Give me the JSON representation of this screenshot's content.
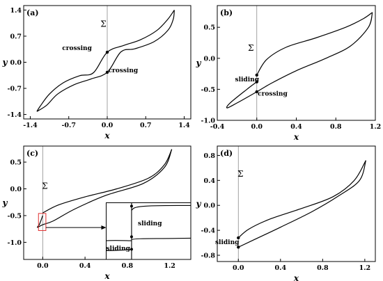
{
  "chart_data": [
    {
      "type": "line",
      "panel": "(a)",
      "xlabel": "x",
      "ylabel": "y",
      "xlim": [
        -1.52,
        1.52
      ],
      "ylim": [
        -1.52,
        1.52
      ],
      "xticks": [
        -1.4,
        -0.7,
        0.0,
        0.7,
        1.4
      ],
      "yticks": [
        -1.4,
        -0.7,
        0.0,
        0.7,
        1.4
      ],
      "xtick_labels": [
        "-1.4",
        "-0.7",
        "0.0",
        "0.7",
        "1.4"
      ],
      "ytick_labels": [
        "-1.4",
        "-0.7",
        "0.0",
        "0.7",
        "1.4"
      ],
      "sigma_label": "Σ",
      "sigma_pos": [
        -0.07,
        0.95
      ],
      "curves": [
        [
          [
            -1.28,
            -1.32
          ],
          [
            -1.22,
            -1.18
          ],
          [
            -1.05,
            -0.85
          ],
          [
            -0.8,
            -0.55
          ],
          [
            -0.5,
            -0.36
          ],
          [
            -0.25,
            -0.28
          ],
          [
            0.0,
            0.27
          ],
          [
            0.3,
            0.45
          ],
          [
            0.6,
            0.6
          ],
          [
            0.9,
            0.85
          ],
          [
            1.1,
            1.15
          ],
          [
            1.22,
            1.4
          ]
        ],
        [
          [
            1.22,
            1.4
          ],
          [
            1.2,
            1.15
          ],
          [
            1.1,
            0.85
          ],
          [
            0.85,
            0.55
          ],
          [
            0.5,
            0.36
          ],
          [
            0.25,
            0.28
          ],
          [
            0.0,
            -0.27
          ],
          [
            -0.3,
            -0.45
          ],
          [
            -0.6,
            -0.6
          ],
          [
            -0.9,
            -0.85
          ],
          [
            -1.1,
            -1.15
          ],
          [
            -1.28,
            -1.32
          ]
        ]
      ],
      "points": [
        [
          0.0,
          0.27
        ],
        [
          0.0,
          -0.27
        ]
      ],
      "annotations": [
        {
          "text": "crossing",
          "x": -0.82,
          "y": 0.33
        },
        {
          "text": "crossing",
          "x": 0.02,
          "y": -0.27
        }
      ]
    },
    {
      "type": "line",
      "panel": "(b)",
      "xlabel": "x",
      "ylabel": "y",
      "xlim": [
        -0.4,
        1.2
      ],
      "ylim": [
        -1.0,
        0.85
      ],
      "xticks": [
        -0.4,
        0.0,
        0.4,
        0.8,
        1.2
      ],
      "yticks": [
        -1.0,
        -0.5,
        0.0,
        0.5
      ],
      "xtick_labels": [
        "-0.4",
        "0.0",
        "0.4",
        "0.8",
        "1.2"
      ],
      "ytick_labels": [
        "-1.0",
        "-0.5",
        "0.0",
        "0.5"
      ],
      "sigma_label": "Σ",
      "sigma_pos": [
        -0.06,
        0.12
      ],
      "curves": [
        [
          [
            0.0,
            -0.27
          ],
          [
            0.1,
            -0.02
          ],
          [
            0.3,
            0.18
          ],
          [
            0.6,
            0.33
          ],
          [
            0.9,
            0.5
          ],
          [
            1.08,
            0.64
          ],
          [
            1.17,
            0.74
          ]
        ],
        [
          [
            1.17,
            0.74
          ],
          [
            1.13,
            0.5
          ],
          [
            0.95,
            0.2
          ],
          [
            0.7,
            0.0
          ],
          [
            0.4,
            -0.2
          ],
          [
            0.15,
            -0.4
          ],
          [
            0.0,
            -0.54
          ],
          [
            -0.2,
            -0.72
          ],
          [
            -0.3,
            -0.8
          ],
          [
            -0.27,
            -0.72
          ],
          [
            -0.1,
            -0.5
          ],
          [
            0.0,
            -0.38
          ]
        ]
      ],
      "points": [
        [
          0.0,
          -0.27
        ],
        [
          0.0,
          -0.38
        ],
        [
          0.0,
          -0.54
        ]
      ],
      "annotations": [
        {
          "text": "sliding",
          "x": -0.22,
          "y": -0.37
        },
        {
          "text": "crossing",
          "x": 0.01,
          "y": -0.6
        }
      ]
    },
    {
      "type": "line",
      "panel": "(c)",
      "xlabel": "x",
      "ylabel": "y",
      "xlim": [
        -0.18,
        1.4
      ],
      "ylim": [
        -1.32,
        0.8
      ],
      "xticks": [
        0.0,
        0.4,
        0.8,
        1.2
      ],
      "yticks": [
        -1.0,
        -0.5,
        0.0,
        0.5
      ],
      "xtick_labels": [
        "0.0",
        "0.4",
        "0.8",
        "1.2"
      ],
      "ytick_labels": [
        "-1.0",
        "-0.5",
        "0.0",
        "0.5"
      ],
      "sigma_label": "Σ",
      "sigma_pos": [
        0.02,
        0.0
      ],
      "curves": [
        [
          [
            0.0,
            -0.45
          ],
          [
            0.15,
            -0.3
          ],
          [
            0.4,
            -0.15
          ],
          [
            0.7,
            0.0
          ],
          [
            1.0,
            0.2
          ],
          [
            1.15,
            0.45
          ],
          [
            1.22,
            0.74
          ]
        ],
        [
          [
            1.22,
            0.74
          ],
          [
            1.15,
            0.4
          ],
          [
            0.95,
            0.1
          ],
          [
            0.6,
            -0.12
          ],
          [
            0.3,
            -0.38
          ],
          [
            0.1,
            -0.6
          ],
          [
            0.0,
            -0.67
          ],
          [
            -0.05,
            -0.72
          ],
          [
            -0.03,
            -0.66
          ],
          [
            0.0,
            -0.5
          ]
        ]
      ],
      "inset": {
        "source_box": [
          [
            -0.04,
            -0.78
          ],
          [
            0.03,
            -0.46
          ]
        ],
        "box": [
          [
            0.6,
            -1.32
          ],
          [
            1.4,
            -0.26
          ]
        ],
        "annotations": [
          {
            "text": "sliding",
            "x": 0.9,
            "y": -0.68
          },
          {
            "text": "sliding",
            "x": 0.6,
            "y": -1.15
          }
        ]
      }
    },
    {
      "type": "line",
      "panel": "(d)",
      "xlabel": "x",
      "ylabel": "y",
      "xlim": [
        -0.2,
        1.3
      ],
      "ylim": [
        -0.9,
        0.95
      ],
      "xticks": [
        0.0,
        0.4,
        0.8,
        1.2
      ],
      "yticks": [
        -0.8,
        -0.4,
        0.0,
        0.4,
        0.8
      ],
      "xtick_labels": [
        "0.0",
        "0.4",
        "0.8",
        "1.2"
      ],
      "ytick_labels": [
        "-0.8",
        "-0.4",
        "0.0",
        "0.4",
        "0.8"
      ],
      "sigma_label": "Σ",
      "sigma_pos": [
        0.02,
        0.46
      ],
      "curves": [
        [
          [
            0.0,
            -0.52
          ],
          [
            0.1,
            -0.38
          ],
          [
            0.3,
            -0.22
          ],
          [
            0.6,
            -0.05
          ],
          [
            0.9,
            0.14
          ],
          [
            1.1,
            0.4
          ],
          [
            1.21,
            0.72
          ]
        ],
        [
          [
            1.21,
            0.72
          ],
          [
            1.15,
            0.4
          ],
          [
            0.95,
            0.15
          ],
          [
            0.7,
            -0.1
          ],
          [
            0.4,
            -0.35
          ],
          [
            0.15,
            -0.55
          ],
          [
            0.0,
            -0.67
          ]
        ]
      ],
      "points": [
        [
          0.0,
          -0.52
        ],
        [
          0.0,
          -0.67
        ]
      ],
      "annotations": [
        {
          "text": "sliding",
          "x": -0.22,
          "y": -0.62
        }
      ]
    }
  ]
}
